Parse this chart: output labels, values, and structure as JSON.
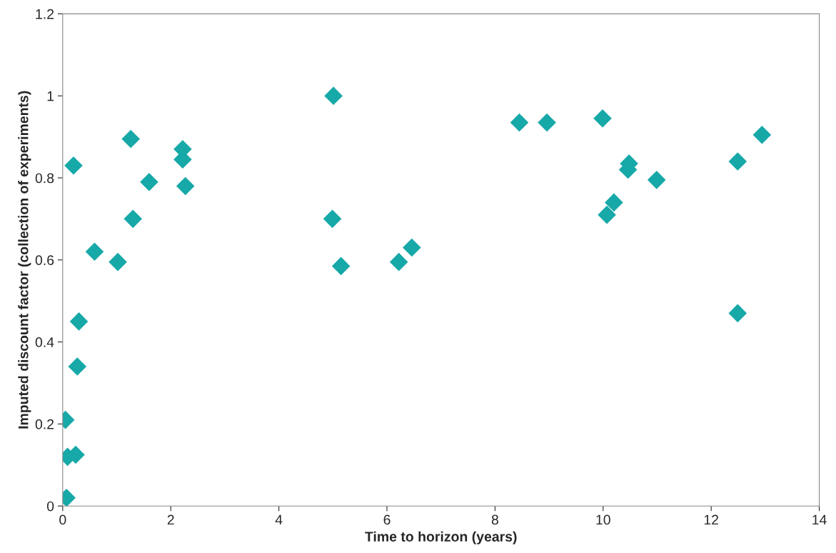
{
  "chart_data": {
    "type": "scatter",
    "xlabel": "Time to horizon (years)",
    "ylabel": "Imputed discount factor (collection of experiments)",
    "x": [
      0.05,
      0.07,
      0.09,
      0.2,
      0.24,
      0.27,
      0.3,
      0.59,
      1.02,
      1.26,
      1.3,
      1.6,
      2.22,
      2.22,
      2.27,
      4.99,
      5.01,
      5.15,
      6.22,
      6.46,
      8.45,
      8.96,
      9.99,
      10.07,
      10.2,
      10.46,
      10.48,
      10.99,
      12.49,
      12.49,
      12.94
    ],
    "values": [
      0.21,
      0.02,
      0.12,
      0.83,
      0.125,
      0.34,
      0.45,
      0.62,
      0.595,
      0.895,
      0.7,
      0.79,
      0.87,
      0.845,
      0.78,
      0.7,
      1.0,
      0.585,
      0.595,
      0.63,
      0.935,
      0.935,
      0.945,
      0.71,
      0.74,
      0.82,
      0.835,
      0.795,
      0.84,
      0.47,
      0.905
    ],
    "color": "#17a8a8",
    "marker": "diamond",
    "grid": false,
    "xlim": [
      0,
      14
    ],
    "xticks": [
      0,
      2,
      4,
      6,
      8,
      10,
      12,
      14
    ],
    "ylim": [
      0,
      1.2
    ],
    "yticks": [
      0,
      0.2,
      0.4,
      0.6,
      0.8,
      1,
      1.2
    ]
  }
}
